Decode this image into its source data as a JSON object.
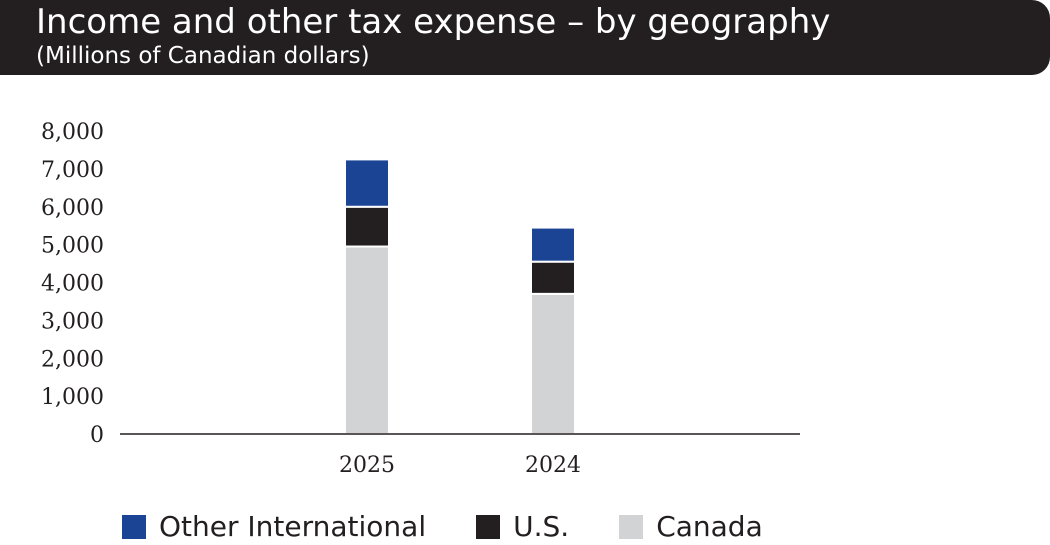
{
  "header": {
    "title": "Income and other tax expense – by geography",
    "subtitle": "(Millions of Canadian dollars)"
  },
  "chart_data": {
    "type": "bar",
    "stacked": true,
    "title": "Income and other tax expense – by geography",
    "subtitle": "(Millions of Canadian dollars)",
    "xlabel": "",
    "ylabel": "",
    "categories": [
      "2025",
      "2024"
    ],
    "ylim": [
      0,
      8000
    ],
    "yticks": [
      0,
      1000,
      2000,
      3000,
      4000,
      5000,
      6000,
      7000,
      8000
    ],
    "ytick_labels": [
      "0",
      "1,000",
      "2,000",
      "3,000",
      "4,000",
      "5,000",
      "6,000",
      "7,000",
      "8,000"
    ],
    "series": [
      {
        "name": "Canada",
        "color": "#d1d3d4",
        "values": [
          4950,
          3700
        ]
      },
      {
        "name": "U.S.",
        "color": "#231f20",
        "values": [
          1050,
          850
        ]
      },
      {
        "name": "Other International",
        "color": "#1b4495",
        "values": [
          1250,
          900
        ]
      }
    ],
    "legend_order": [
      "Other International",
      "U.S.",
      "Canada"
    ],
    "legend_position": "bottom",
    "grid": false
  }
}
